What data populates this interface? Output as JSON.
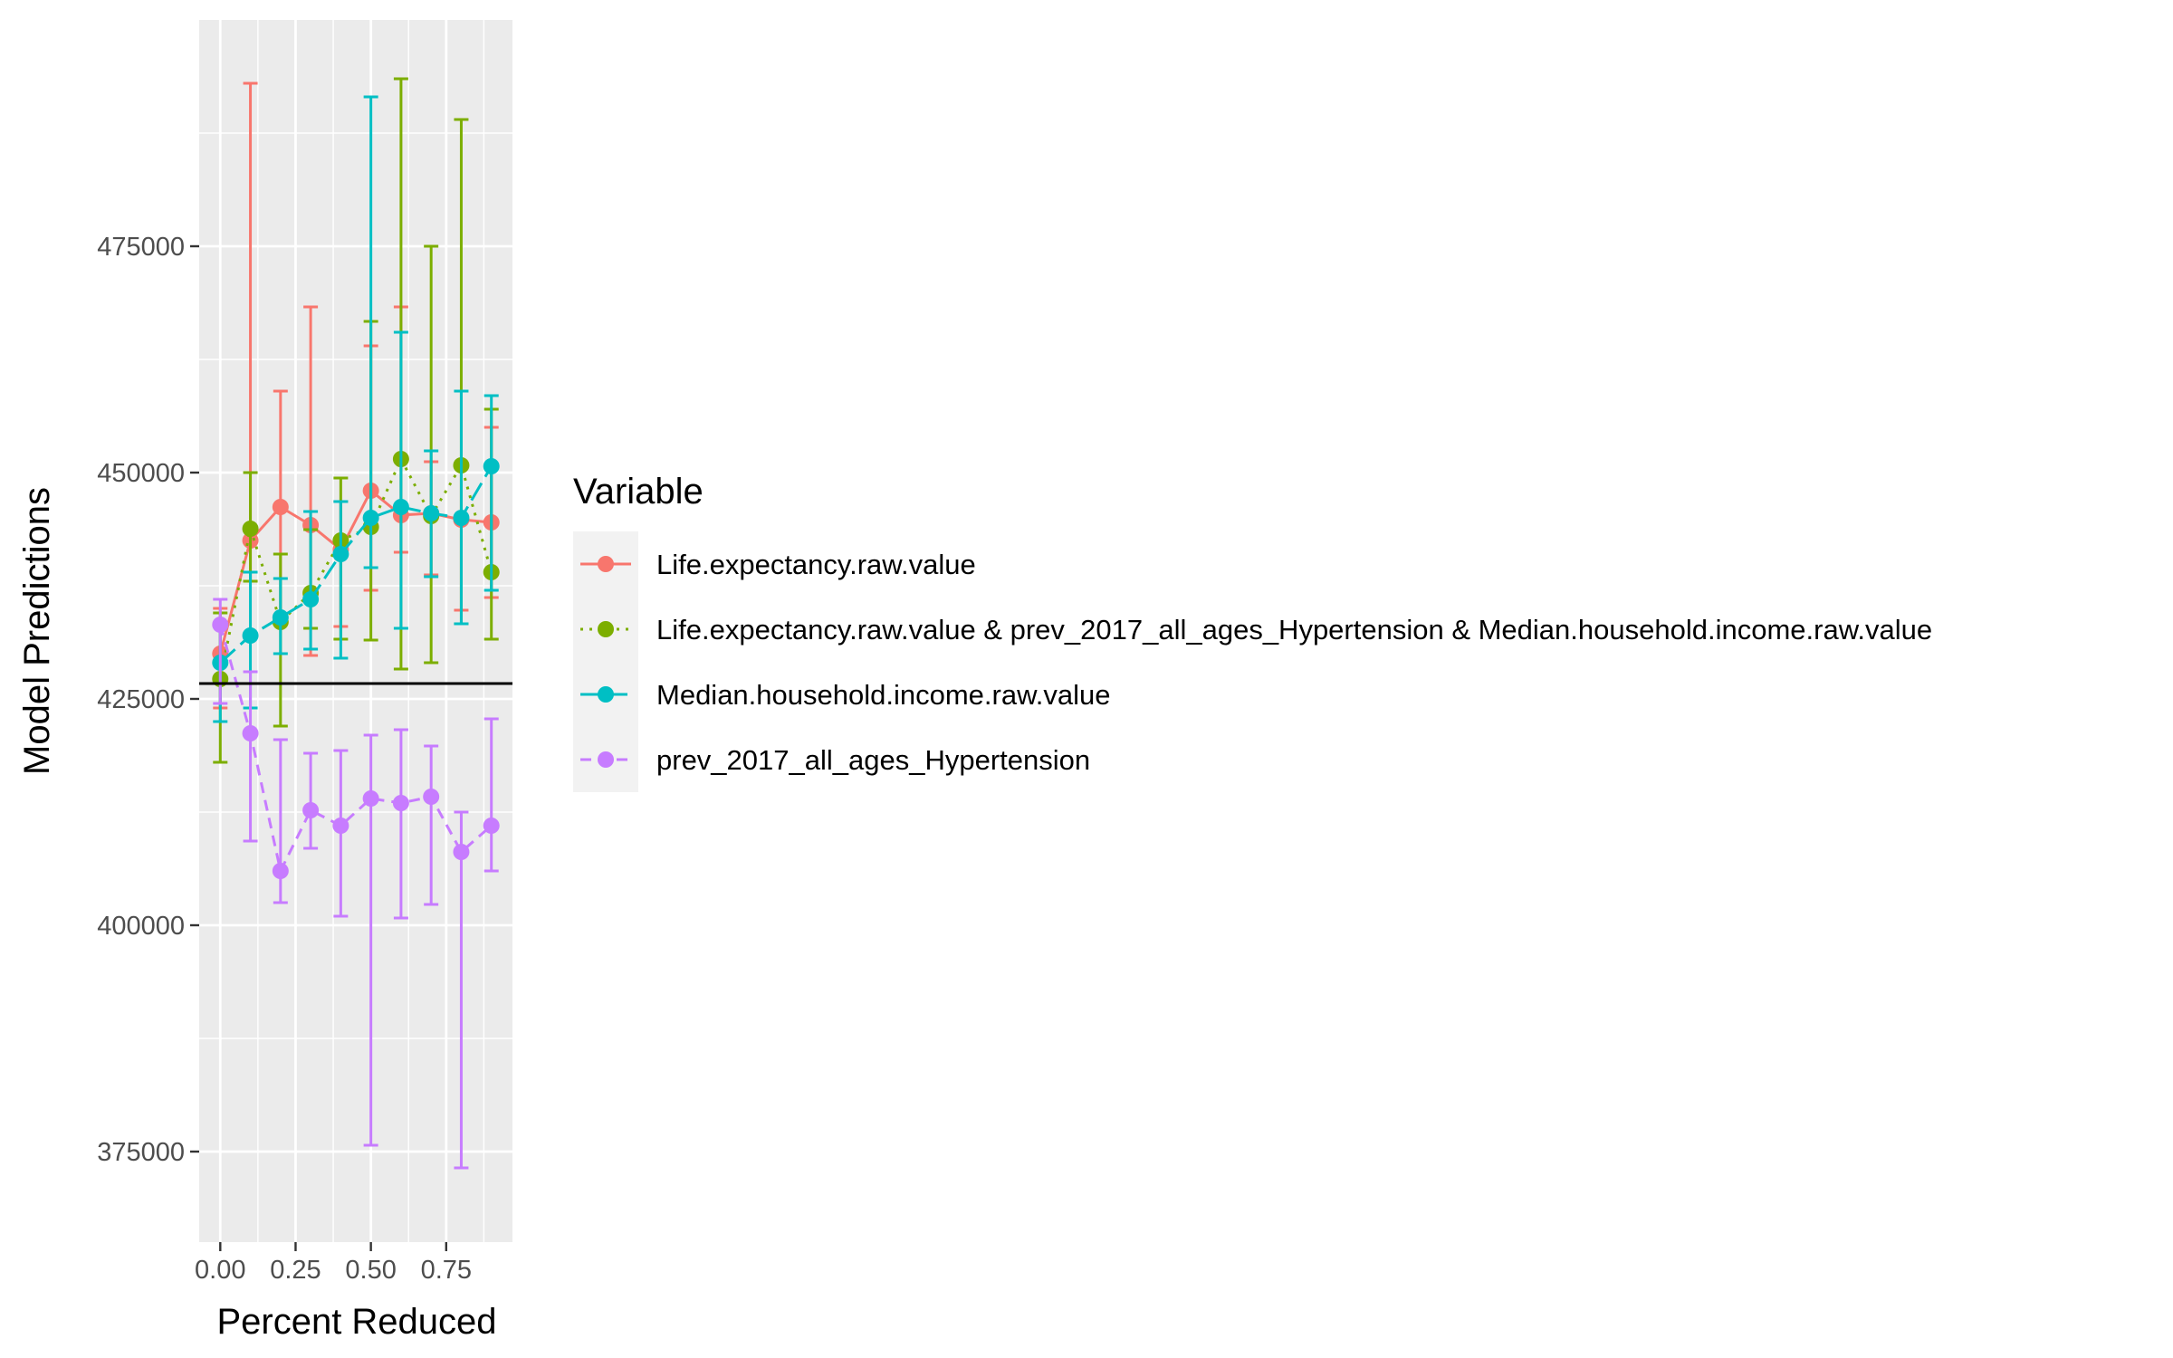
{
  "chart_data": {
    "type": "line",
    "title": "",
    "xlabel": "Percent Reduced",
    "ylabel": "Model Predictions",
    "xlim": [
      -0.07,
      0.97
    ],
    "ylim": [
      365000,
      500000
    ],
    "x_ticks": [
      0,
      0.25,
      0.5,
      0.75
    ],
    "x_tick_labels": [
      "0.00",
      "0.25",
      "0.50",
      "0.75"
    ],
    "y_ticks": [
      375000,
      400000,
      425000,
      450000,
      475000
    ],
    "y_tick_labels": [
      "375000",
      "400000",
      "425000",
      "450000",
      "475000"
    ],
    "grid": true,
    "reference_line": 426700,
    "legend": {
      "title": "Variable",
      "placement": "right"
    },
    "series": [
      {
        "name": "Life.expectancy.raw.value",
        "color": "#F8766D",
        "dash": "solid",
        "x": [
          0,
          0.1,
          0.2,
          0.3,
          0.4,
          0.5,
          0.6,
          0.7,
          0.8,
          0.9
        ],
        "y": [
          430000,
          442500,
          446200,
          444200,
          441500,
          448000,
          445300,
          445500,
          444800,
          444500
        ],
        "ymin": [
          424000,
          438000,
          433500,
          429800,
          433000,
          437000,
          441200,
          438700,
          434800,
          436200
        ],
        "ymax": [
          435000,
          493000,
          459000,
          468300,
          446800,
          464000,
          468300,
          451200,
          450900,
          455000
        ]
      },
      {
        "name": "Life.expectancy.raw.value & prev_2017_all_ages_Hypertension & Median.household.income.raw.value",
        "color": "#7CAE00",
        "dash": "dot",
        "x": [
          0,
          0.1,
          0.2,
          0.3,
          0.4,
          0.5,
          0.6,
          0.7,
          0.8,
          0.9
        ],
        "y": [
          427200,
          443800,
          433500,
          436700,
          442500,
          444000,
          451500,
          445200,
          450800,
          439000
        ],
        "ymin": [
          418000,
          438000,
          422000,
          432800,
          431600,
          431500,
          428300,
          429000,
          433300,
          431600
        ],
        "ymax": [
          434500,
          450000,
          441000,
          443700,
          449400,
          466700,
          493500,
          475000,
          489000,
          457000
        ]
      },
      {
        "name": "Median.household.income.raw.value",
        "color": "#00BFC4",
        "dash": "longdash",
        "x": [
          0,
          0.1,
          0.2,
          0.3,
          0.4,
          0.5,
          0.6,
          0.7,
          0.8,
          0.9
        ],
        "y": [
          429000,
          432000,
          434000,
          436000,
          441000,
          445000,
          446200,
          445500,
          445000,
          450700
        ],
        "ymin": [
          422500,
          424000,
          430000,
          430500,
          429500,
          439500,
          432800,
          438500,
          433300,
          437000
        ],
        "ymax": [
          433000,
          439000,
          438300,
          445700,
          446800,
          491500,
          465500,
          452400,
          459000,
          458500
        ]
      },
      {
        "name": "prev_2017_all_ages_Hypertension",
        "color": "#C77CFF",
        "dash": "dash",
        "x": [
          0,
          0.1,
          0.2,
          0.3,
          0.4,
          0.5,
          0.6,
          0.7,
          0.8,
          0.9
        ],
        "y": [
          433200,
          421200,
          406000,
          412700,
          411000,
          414000,
          413500,
          414200,
          408100,
          411000
        ],
        "ymin": [
          424500,
          409300,
          402500,
          408500,
          401000,
          375700,
          400800,
          402300,
          373200,
          406000
        ],
        "ymax": [
          436000,
          428000,
          420500,
          419000,
          419300,
          421000,
          421600,
          419800,
          412500,
          422800
        ]
      }
    ]
  }
}
